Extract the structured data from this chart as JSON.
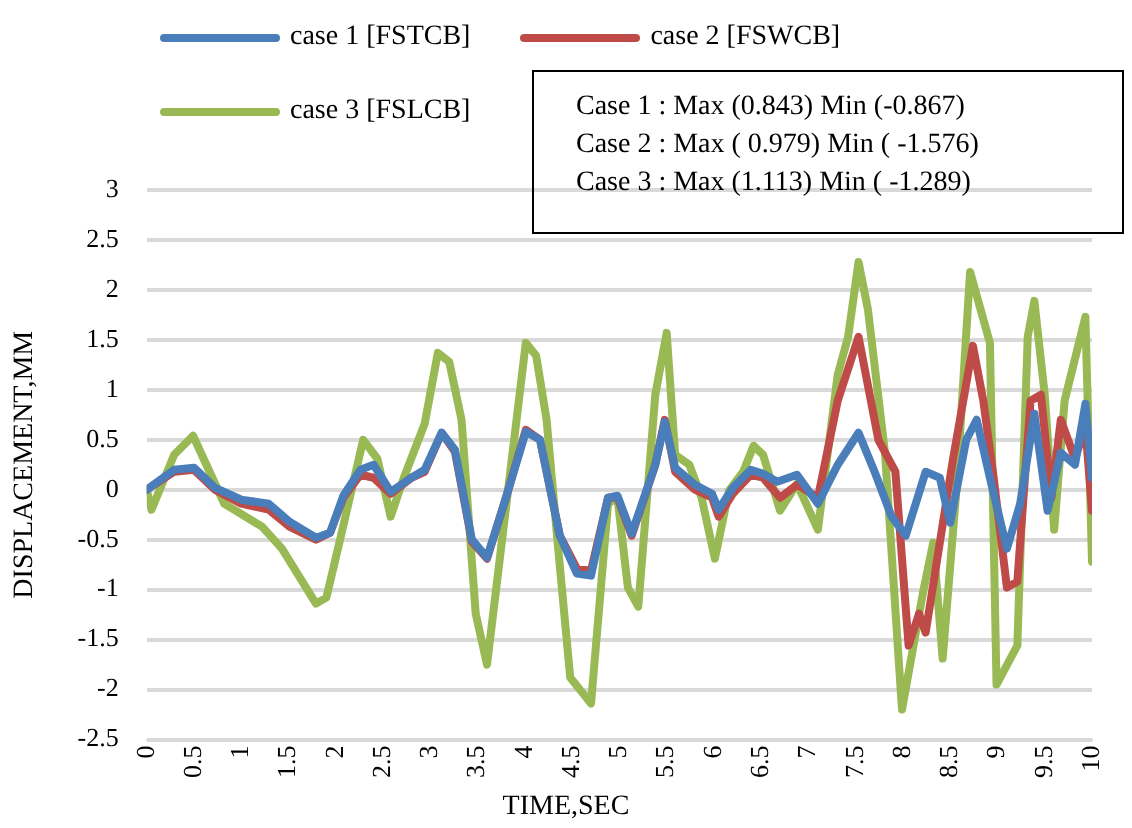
{
  "chart_data": {
    "type": "line",
    "xlabel": "TIME,SEC",
    "ylabel": "DISPLACEMENT,MM",
    "xlim": [
      0,
      10
    ],
    "xticks": [
      0,
      0.5,
      1,
      1.5,
      2,
      2.5,
      3,
      3.5,
      4,
      4.5,
      5,
      5.5,
      6,
      6.5,
      7,
      7.5,
      8,
      8.5,
      9,
      9.5,
      10
    ],
    "ylim": [
      -2.5,
      3
    ],
    "yticks": [
      -2.5,
      -2,
      -1.5,
      -1,
      -0.5,
      0,
      0.5,
      1,
      1.5,
      2,
      2.5,
      3
    ],
    "grid": "y",
    "legend": "top",
    "marker": "none",
    "line_style": "solid",
    "annotations": [
      "Case 1 : Max (0.843) Min (-0.867)",
      "Case 2 : Max ( 0.979) Min ( -1.576)",
      "Case 3 : Max (1.113) Min ( -1.289)"
    ],
    "series": [
      {
        "name": "case 1 [FSTCB]",
        "color": "#4a7ebb",
        "x": [
          0,
          0.29,
          0.5,
          0.72,
          1.0,
          1.29,
          1.51,
          1.79,
          1.94,
          2.08,
          2.26,
          2.4,
          2.58,
          2.8,
          2.94,
          3.12,
          3.26,
          3.44,
          3.6,
          3.8,
          4.01,
          4.16,
          4.37,
          4.55,
          4.7,
          4.88,
          4.98,
          5.13,
          5.38,
          5.48,
          5.59,
          5.8,
          5.98,
          6.05,
          6.2,
          6.39,
          6.52,
          6.67,
          6.88,
          7.1,
          7.31,
          7.53,
          7.7,
          7.88,
          8.03,
          8.24,
          8.39,
          8.5,
          8.67,
          8.78,
          8.92,
          9.1,
          9.24,
          9.39,
          9.53,
          9.67,
          9.82,
          9.93,
          10.0
        ],
        "values": [
          0,
          0.2,
          0.22,
          0.02,
          -0.1,
          -0.14,
          -0.32,
          -0.48,
          -0.43,
          -0.06,
          0.2,
          0.25,
          -0.02,
          0.12,
          0.2,
          0.57,
          0.4,
          -0.5,
          -0.68,
          -0.08,
          0.58,
          0.5,
          -0.46,
          -0.84,
          -0.86,
          -0.08,
          -0.06,
          -0.44,
          0.25,
          0.68,
          0.22,
          0.05,
          -0.04,
          -0.2,
          0.02,
          0.2,
          0.16,
          0.08,
          0.15,
          -0.14,
          0.25,
          0.57,
          0.18,
          -0.27,
          -0.46,
          0.18,
          0.12,
          -0.33,
          0.5,
          0.7,
          0.12,
          -0.59,
          -0.14,
          0.76,
          -0.21,
          0.37,
          0.25,
          0.86,
          0.12
        ]
      },
      {
        "name": "case 2 [FSWCB]",
        "color": "#be4b48",
        "x": [
          0,
          0.29,
          0.5,
          0.72,
          1.0,
          1.29,
          1.51,
          1.79,
          1.94,
          2.08,
          2.26,
          2.4,
          2.58,
          2.8,
          2.94,
          3.12,
          3.26,
          3.44,
          3.6,
          3.8,
          4.01,
          4.16,
          4.37,
          4.55,
          4.7,
          4.88,
          4.98,
          5.13,
          5.38,
          5.48,
          5.59,
          5.8,
          5.98,
          6.05,
          6.2,
          6.39,
          6.52,
          6.7,
          6.88,
          7.1,
          7.31,
          7.53,
          7.74,
          7.92,
          8.06,
          8.17,
          8.24,
          8.39,
          8.53,
          8.74,
          8.85,
          8.96,
          9.1,
          9.21,
          9.35,
          9.46,
          9.57,
          9.67,
          9.82,
          9.93,
          10.0
        ],
        "values": [
          0,
          0.18,
          0.2,
          0,
          -0.14,
          -0.2,
          -0.37,
          -0.5,
          -0.43,
          -0.08,
          0.15,
          0.12,
          -0.04,
          0.12,
          0.18,
          0.57,
          0.38,
          -0.52,
          -0.69,
          -0.08,
          0.6,
          0.5,
          -0.46,
          -0.79,
          -0.81,
          -0.08,
          -0.08,
          -0.46,
          0.25,
          0.7,
          0.18,
          0,
          -0.08,
          -0.27,
          -0.04,
          0.15,
          0.12,
          -0.08,
          0.05,
          -0.08,
          0.89,
          1.53,
          0.5,
          0.18,
          -1.56,
          -1.24,
          -1.43,
          -0.53,
          0.31,
          1.44,
          0.89,
          0.12,
          -0.98,
          -0.92,
          0.89,
          0.95,
          -0.08,
          0.7,
          0.31,
          0.63,
          -0.21
        ]
      },
      {
        "name": "case 3 [FSLCB]",
        "color": "#98b954",
        "x": [
          0,
          0.05,
          0.29,
          0.49,
          0.82,
          1.22,
          1.43,
          1.79,
          1.9,
          2.04,
          2.29,
          2.44,
          2.58,
          2.72,
          2.94,
          3.08,
          3.2,
          3.33,
          3.48,
          3.6,
          4.01,
          4.12,
          4.23,
          4.34,
          4.48,
          4.7,
          4.88,
          4.98,
          5.09,
          5.2,
          5.38,
          5.5,
          5.59,
          5.74,
          5.87,
          6.01,
          6.16,
          6.31,
          6.42,
          6.52,
          6.7,
          6.88,
          7.1,
          7.31,
          7.42,
          7.53,
          7.63,
          7.81,
          7.99,
          8.21,
          8.32,
          8.42,
          8.57,
          8.71,
          8.92,
          8.99,
          9.21,
          9.32,
          9.39,
          9.5,
          9.6,
          9.71,
          9.93,
          10
        ],
        "values": [
          0,
          -0.2,
          0.35,
          0.54,
          -0.14,
          -0.37,
          -0.59,
          -1.14,
          -1.08,
          -0.52,
          0.5,
          0.31,
          -0.27,
          0.12,
          0.66,
          1.37,
          1.28,
          0.7,
          -1.24,
          -1.75,
          1.47,
          1.34,
          0.7,
          -0.46,
          -1.88,
          -2.14,
          -0.14,
          -0.08,
          -0.98,
          -1.17,
          0.95,
          1.57,
          0.35,
          0.25,
          -0.08,
          -0.69,
          -0.01,
          0.18,
          0.44,
          0.35,
          -0.21,
          0.06,
          -0.4,
          1.15,
          1.53,
          2.28,
          1.8,
          0.37,
          -2.2,
          -1.04,
          -0.53,
          -1.69,
          0.05,
          2.18,
          1.47,
          -1.95,
          -1.56,
          1.53,
          1.89,
          0.95,
          -0.4,
          0.89,
          1.73,
          -0.72
        ]
      }
    ]
  }
}
